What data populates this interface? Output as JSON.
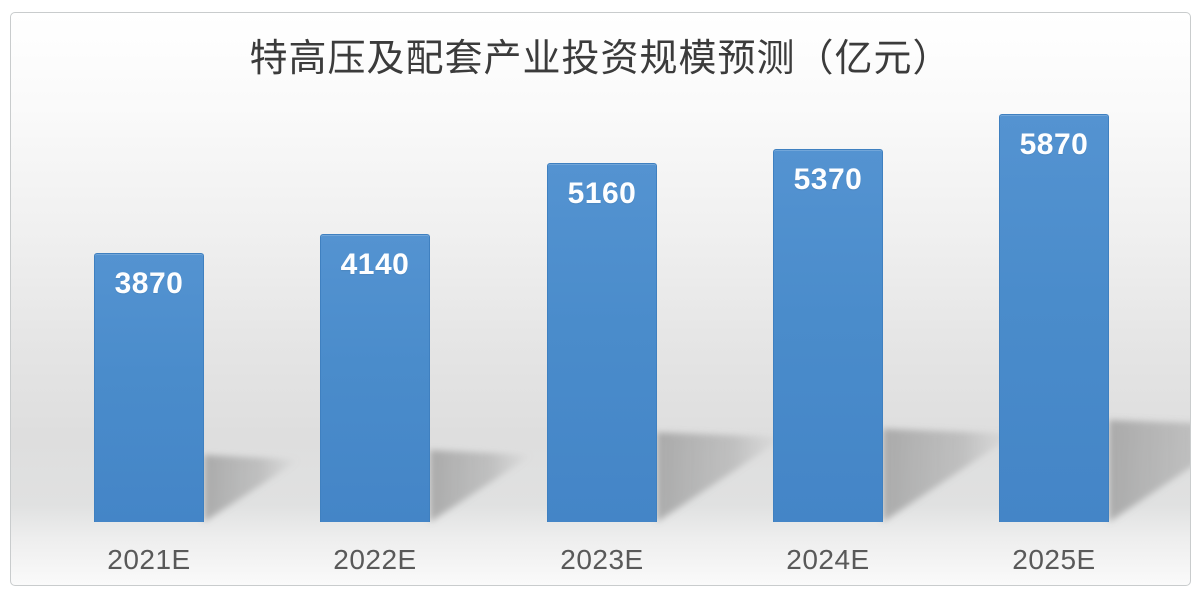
{
  "chart_data": {
    "type": "bar",
    "title": "特高压及配套产业投资规模预测（亿元）",
    "categories": [
      "2021E",
      "2022E",
      "2023E",
      "2024E",
      "2025E"
    ],
    "values": [
      3870,
      4140,
      5160,
      5370,
      5870
    ],
    "data_labels_visible": true,
    "y_axis_visible": false,
    "x_axis_visible": true,
    "grid": false,
    "legend": "none",
    "ylim": [
      0,
      5870
    ],
    "colors": {
      "bar": "#4a8ccb",
      "bar_border": "#3f80c0",
      "value_label": "#fdfeff",
      "category_label": "#595959",
      "title": "#3b3b3b",
      "card_border": "#c9cccd",
      "shadow": "#7f7f7f"
    }
  }
}
